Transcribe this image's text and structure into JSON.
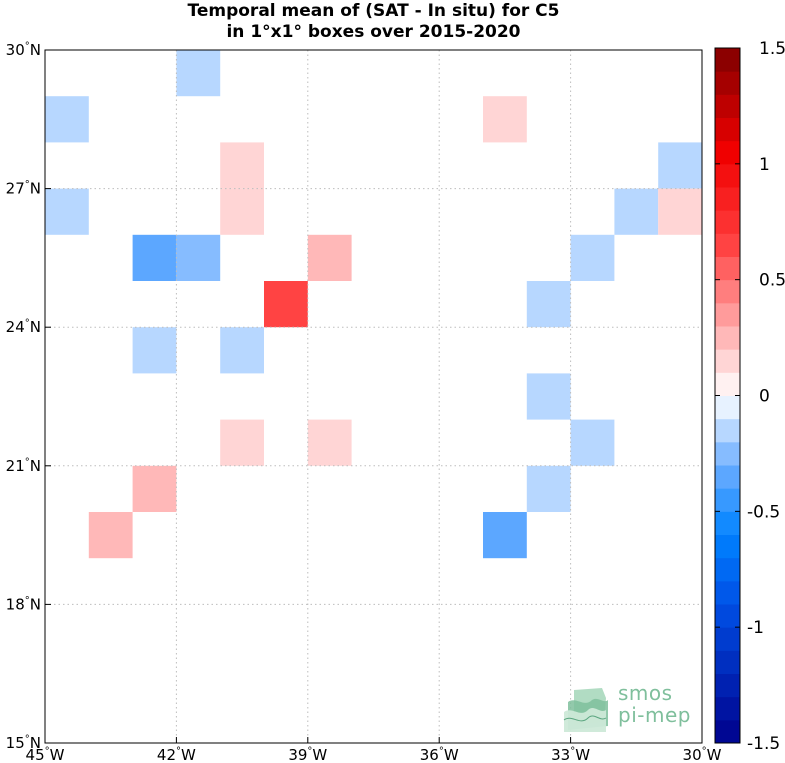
{
  "title": {
    "line1": "Temporal mean of (SAT - In situ) for C5",
    "line2": "in 1°x1° boxes over 2015-2020"
  },
  "logo": {
    "line1": "smos",
    "line2": "pi-mep"
  },
  "colors": {
    "background": "#ffffff",
    "gridline": "#bdbdbd",
    "axis": "#000000",
    "colorbar_min": "#00008b",
    "colorbar_mid": "#ffffff",
    "colorbar_max": "#7f0000"
  },
  "chart_data": {
    "type": "heatmap",
    "title": "Temporal mean of (SAT - In situ) for C5 in 1°x1° boxes over 2015-2020",
    "xlabel": "",
    "ylabel": "",
    "xlim": [
      -45,
      -30
    ],
    "ylim": [
      15,
      30
    ],
    "grid": true,
    "x_ticks": [
      {
        "value": -45,
        "label": "45°W"
      },
      {
        "value": -42,
        "label": "42°W"
      },
      {
        "value": -39,
        "label": "39°W"
      },
      {
        "value": -36,
        "label": "36°W"
      },
      {
        "value": -33,
        "label": "33°W"
      },
      {
        "value": -30,
        "label": "30°W"
      }
    ],
    "y_ticks": [
      {
        "value": 15,
        "label": "15°N"
      },
      {
        "value": 18,
        "label": "18°N"
      },
      {
        "value": 21,
        "label": "21°N"
      },
      {
        "value": 24,
        "label": "24°N"
      },
      {
        "value": 27,
        "label": "27°N"
      },
      {
        "value": 30,
        "label": "30°N"
      }
    ],
    "colorbar": {
      "min": -1.5,
      "max": 1.5,
      "step": 0.1,
      "ticks": [
        {
          "value": 1.5,
          "label": "1.5"
        },
        {
          "value": 1,
          "label": "1"
        },
        {
          "value": 0.5,
          "label": "0.5"
        },
        {
          "value": 0,
          "label": "0"
        },
        {
          "value": -0.5,
          "label": "-0.5"
        },
        {
          "value": -1,
          "label": "-1"
        },
        {
          "value": -1.5,
          "label": "-1.5"
        }
      ]
    },
    "cells": [
      {
        "lon": -42,
        "lat": 29,
        "value": -0.15
      },
      {
        "lon": -45,
        "lat": 28,
        "value": -0.15
      },
      {
        "lon": -35,
        "lat": 28,
        "value": 0.15
      },
      {
        "lon": -41,
        "lat": 27,
        "value": 0.15
      },
      {
        "lon": -31,
        "lat": 27,
        "value": -0.15
      },
      {
        "lon": -45,
        "lat": 26,
        "value": -0.15
      },
      {
        "lon": -41,
        "lat": 26,
        "value": 0.15
      },
      {
        "lon": -32,
        "lat": 26,
        "value": -0.15
      },
      {
        "lon": -31,
        "lat": 26,
        "value": 0.15
      },
      {
        "lon": -43,
        "lat": 25,
        "value": -0.4
      },
      {
        "lon": -42,
        "lat": 25,
        "value": -0.25
      },
      {
        "lon": -39,
        "lat": 25,
        "value": 0.3
      },
      {
        "lon": -33,
        "lat": 25,
        "value": -0.15
      },
      {
        "lon": -40,
        "lat": 24,
        "value": 0.65
      },
      {
        "lon": -34,
        "lat": 24,
        "value": -0.15
      },
      {
        "lon": -43,
        "lat": 23,
        "value": -0.15
      },
      {
        "lon": -41,
        "lat": 23,
        "value": -0.15
      },
      {
        "lon": -34,
        "lat": 22,
        "value": -0.15
      },
      {
        "lon": -41,
        "lat": 21,
        "value": 0.15
      },
      {
        "lon": -39,
        "lat": 21,
        "value": 0.15
      },
      {
        "lon": -33,
        "lat": 21,
        "value": -0.15
      },
      {
        "lon": -43,
        "lat": 20,
        "value": 0.3
      },
      {
        "lon": -34,
        "lat": 20,
        "value": -0.15
      },
      {
        "lon": -44,
        "lat": 19,
        "value": 0.3
      },
      {
        "lon": -35,
        "lat": 19,
        "value": -0.4
      }
    ]
  }
}
